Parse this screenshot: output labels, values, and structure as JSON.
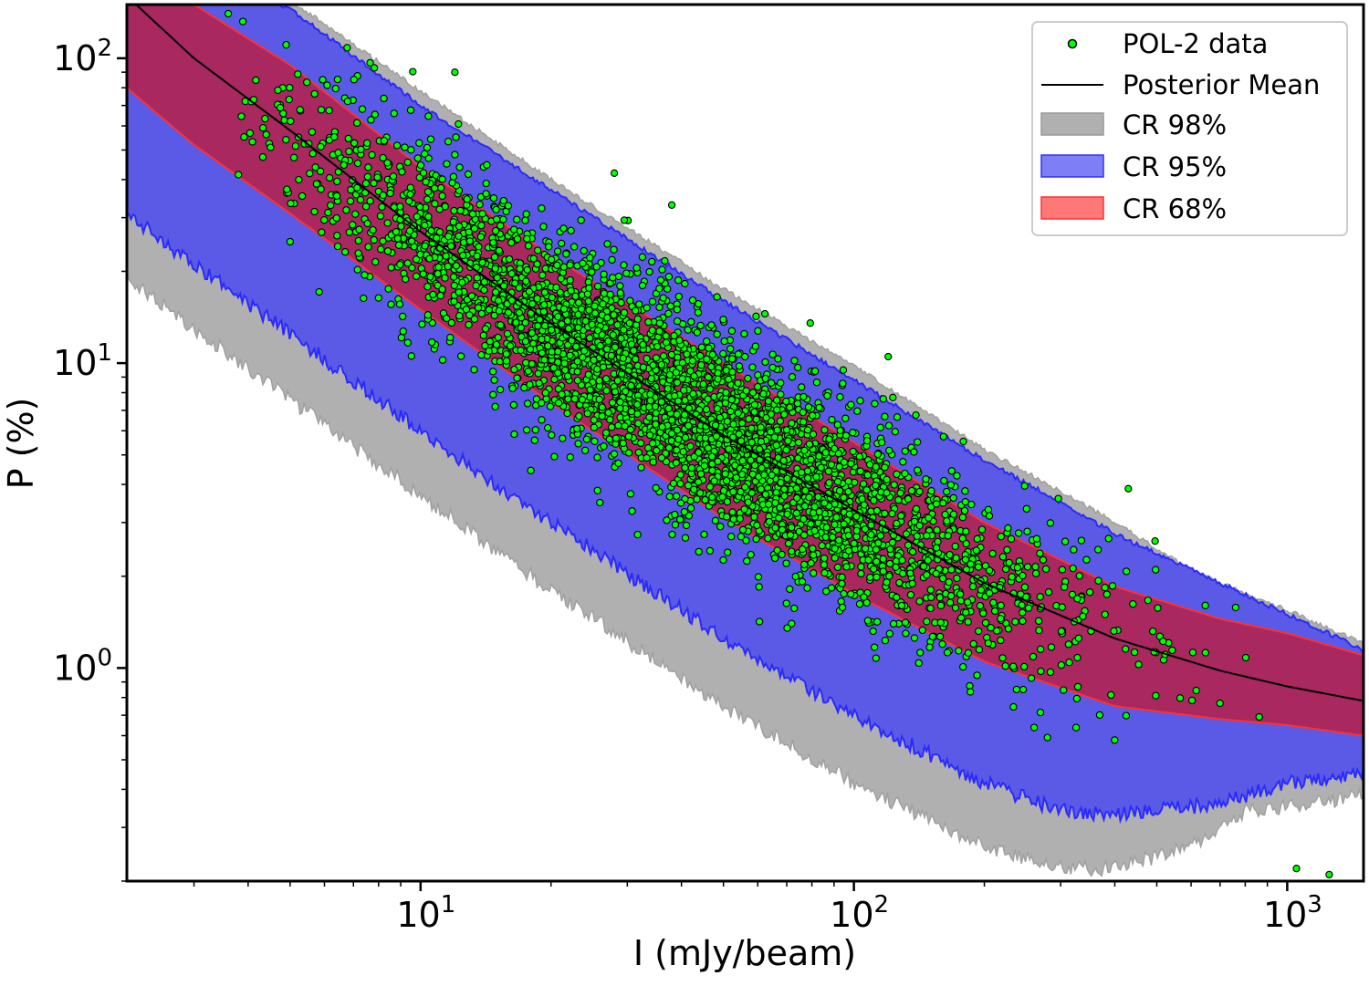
{
  "chart_data": {
    "type": "scatter",
    "xscale": "log",
    "yscale": "log",
    "xlabel": "I (mJy/beam)",
    "ylabel": "P (%)",
    "xlim": [
      2.1,
      1500
    ],
    "ylim": [
      0.2,
      150
    ],
    "x_ticks": [
      {
        "base": "10",
        "exp": "1",
        "value": 10
      },
      {
        "base": "10",
        "exp": "2",
        "value": 100
      },
      {
        "base": "10",
        "exp": "3",
        "value": 1000
      }
    ],
    "y_ticks": [
      {
        "base": "10",
        "exp": "0",
        "value": 1
      },
      {
        "base": "10",
        "exp": "1",
        "value": 10
      },
      {
        "base": "10",
        "exp": "2",
        "value": 100
      }
    ],
    "legend": {
      "placement": "top-right",
      "entries": [
        {
          "label": "POL-2 data",
          "kind": "marker",
          "color": "#00ff00"
        },
        {
          "label": "Posterior Mean",
          "kind": "line",
          "color": "#000000"
        },
        {
          "label": "CR 98%",
          "kind": "patch",
          "color": "#b0b0b0"
        },
        {
          "label": "CR 95%",
          "kind": "patch",
          "color": "#5a5ae6"
        },
        {
          "label": "CR 68%",
          "kind": "patch",
          "color": "#ff5a5a"
        }
      ]
    },
    "posterior_mean": {
      "I": [
        2.1,
        3,
        5,
        10,
        20,
        50,
        100,
        200,
        400,
        700,
        1000,
        1500
      ],
      "P": [
        160,
        100,
        58,
        27,
        13.5,
        5.8,
        3.3,
        1.9,
        1.25,
        0.98,
        0.87,
        0.78
      ]
    },
    "cr68": {
      "I": [
        2.1,
        3,
        5,
        10,
        20,
        50,
        100,
        200,
        400,
        700,
        1000,
        1500
      ],
      "lower": [
        80,
        52,
        31,
        15,
        7.4,
        3.1,
        1.75,
        1.05,
        0.75,
        0.68,
        0.65,
        0.6
      ],
      "upper": [
        185,
        150,
        95,
        44,
        22.5,
        10,
        5.5,
        3.0,
        1.85,
        1.45,
        1.3,
        1.1
      ]
    },
    "cr95": {
      "I": [
        2.1,
        3,
        5,
        10,
        20,
        50,
        100,
        200,
        300,
        400,
        700,
        1000,
        1500
      ],
      "lower": [
        31,
        21,
        12.5,
        6,
        3.0,
        1.25,
        0.7,
        0.42,
        0.34,
        0.33,
        0.36,
        0.42,
        0.45
      ],
      "upper": [
        185,
        185,
        145,
        70,
        37,
        16,
        8.8,
        4.8,
        3.5,
        2.75,
        1.9,
        1.5,
        1.15
      ]
    },
    "cr98": {
      "I": [
        2.1,
        3,
        5,
        10,
        20,
        50,
        100,
        200,
        300,
        400,
        600,
        800,
        1000,
        1500
      ],
      "lower": [
        19,
        13,
        7.6,
        3.7,
        1.8,
        0.75,
        0.42,
        0.26,
        0.22,
        0.22,
        0.26,
        0.34,
        0.35,
        0.38
      ],
      "upper": [
        190,
        190,
        155,
        78,
        40,
        17.5,
        9.8,
        5.2,
        3.8,
        3.0,
        2.1,
        1.75,
        1.55,
        1.2
      ]
    },
    "scatter_model": {
      "count": 3800,
      "log10I_range": [
        0.55,
        3.17
      ],
      "log10I_distribution": "log-normal mixture concentrated between 5 and 300 mJy/beam, mean 1.62, sd 0.42",
      "P_relation": "log10 P = posterior_mean(I) + gaussian scatter",
      "log10P_scatter_sd": 0.16
    },
    "scatter_outliers": {
      "I": [
        3.6,
        12,
        28,
        38,
        120,
        1050,
        1250
      ],
      "P": [
        140,
        90,
        42,
        33,
        10.5,
        0.22,
        0.21
      ]
    },
    "colors": {
      "cr98": "#b0b0b0",
      "cr95": "#5a5ae6",
      "cr68": "#a8285f",
      "cr68_edge": "#ff3030",
      "cr95_edge": "#2a2aff",
      "cr98_edge": "#a0a0a0",
      "marker_fill": "#00ff00",
      "marker_edge": "#000000",
      "mean_line": "#000000"
    }
  }
}
